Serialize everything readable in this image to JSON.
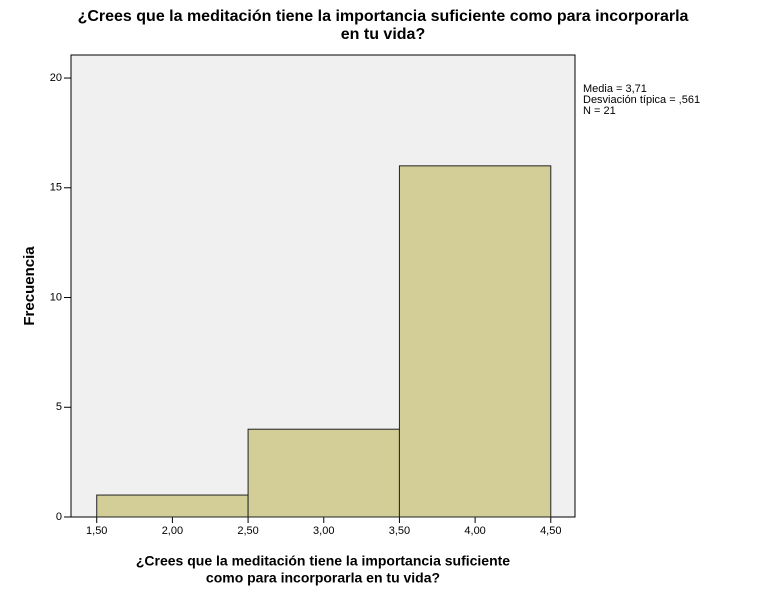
{
  "chart_data": {
    "type": "histogram",
    "title": [
      "¿Crees que la meditación tiene la importancia suficiente como para incorporarla",
      "en tu vida?"
    ],
    "xlabel": [
      "¿Crees que la meditación tiene la importancia suficiente",
      "como para incorporarla en tu vida?"
    ],
    "ylabel": "Frecuencia",
    "annotations": [
      "Media = 3,71",
      "Desviación típica = ,561",
      "N = 21"
    ],
    "bins": [
      1.5,
      2.5,
      3.5,
      4.5
    ],
    "values": [
      1,
      4,
      16
    ],
    "color": "#d3ce97",
    "xlim": [
      1.33,
      4.66
    ],
    "ylim": [
      0,
      21.05
    ],
    "xticks": [
      {
        "value": 1.5,
        "label": "1,50"
      },
      {
        "value": 2,
        "label": "2,00"
      },
      {
        "value": 2.5,
        "label": "2,50"
      },
      {
        "value": 3,
        "label": "3,00"
      },
      {
        "value": 3.5,
        "label": "3,50"
      },
      {
        "value": 4,
        "label": "4,00"
      },
      {
        "value": 4.5,
        "label": "4,50"
      }
    ],
    "yticks": [
      0,
      5,
      10,
      15,
      20
    ]
  }
}
